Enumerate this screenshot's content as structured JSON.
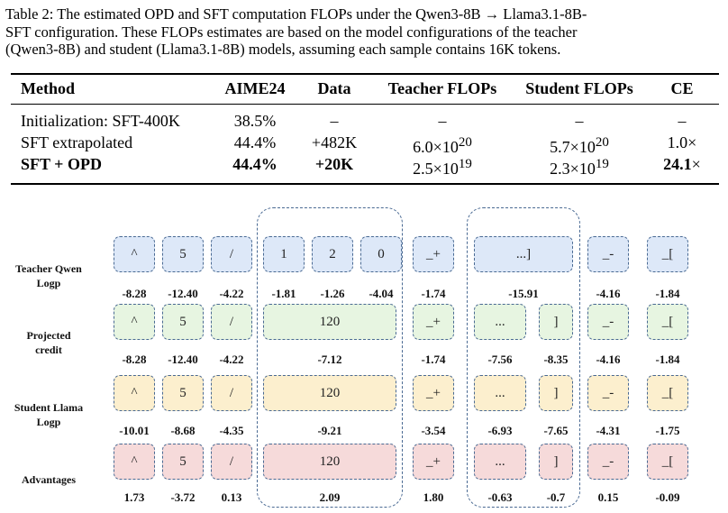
{
  "caption": {
    "line1": "Table 2: The estimated OPD and SFT computation FLOPs under the Qwen3-8B → Llama3.1-8B-",
    "line2": "SFT configuration.  These FLOPs estimates are based on the model configurations of the teacher",
    "line3": "(Qwen3-8B) and student (Llama3.1-8B) models, assuming each sample contains 16K tokens."
  },
  "table": {
    "headers": [
      "Method",
      "AIME24",
      "Data",
      "Teacher FLOPs",
      "Student FLOPs",
      "CE"
    ],
    "rows": [
      [
        "Initialization: SFT-400K",
        "38.5%",
        "–",
        "–",
        "–",
        "–"
      ],
      [
        "SFT extrapolated",
        "44.4%",
        "+482K",
        "6.0×10",
        "5.7×10",
        "1.0×"
      ],
      [
        "SFT + OPD",
        "44.4%",
        "+20K",
        "2.5×10",
        "2.3×10",
        "24.1"
      ]
    ],
    "exponents": {
      "sft_teacher": "20",
      "sft_student": "20",
      "opd_teacher": "19",
      "opd_student": "19"
    },
    "ce_suffix": "×"
  },
  "figure": {
    "row_labels": {
      "teacher": [
        "Teacher Qwen",
        "Logp"
      ],
      "credit": [
        "Projected",
        "credit"
      ],
      "student": [
        "Student Llama",
        "Logp"
      ],
      "advantages": [
        "Advantages"
      ]
    },
    "teacher": {
      "tokens": [
        "^",
        "5",
        "/",
        "1",
        "2",
        "0",
        "_+",
        "...]",
        "_-",
        "_["
      ],
      "values": [
        "-8.28",
        "-12.40",
        "-4.22",
        "-1.81",
        "-1.26",
        "-4.04",
        "-1.74",
        "-15.91",
        "-4.16",
        "-1.84"
      ]
    },
    "credit": {
      "tokens": [
        "^",
        "5",
        "/",
        "120",
        "_+",
        "...",
        "]",
        "_-",
        "_["
      ],
      "values": [
        "-8.28",
        "-12.40",
        "-4.22",
        "-7.12",
        "-1.74",
        "-7.56",
        "-8.35",
        "-4.16",
        "-1.84"
      ]
    },
    "student": {
      "tokens": [
        "^",
        "5",
        "/",
        "120",
        "_+",
        "...",
        "]",
        "_-",
        "_["
      ],
      "values": [
        "-10.01",
        "-8.68",
        "-4.35",
        "-9.21",
        "-3.54",
        "-6.93",
        "-7.65",
        "-4.31",
        "-1.75"
      ]
    },
    "advantages": {
      "tokens": [
        "^",
        "5",
        "/",
        "120",
        "_+",
        "...",
        "]",
        "_-",
        "_["
      ],
      "values": [
        "1.73",
        "-3.72",
        "0.13",
        "2.09",
        "1.80",
        "-0.63",
        "-0.7",
        "0.15",
        "-0.09"
      ]
    },
    "colors": {
      "teacher": "#dde8f8",
      "credit": "#e7f5e1",
      "student": "#fcefce",
      "advantages": "#f6dada",
      "border": "#4a6a93"
    }
  }
}
